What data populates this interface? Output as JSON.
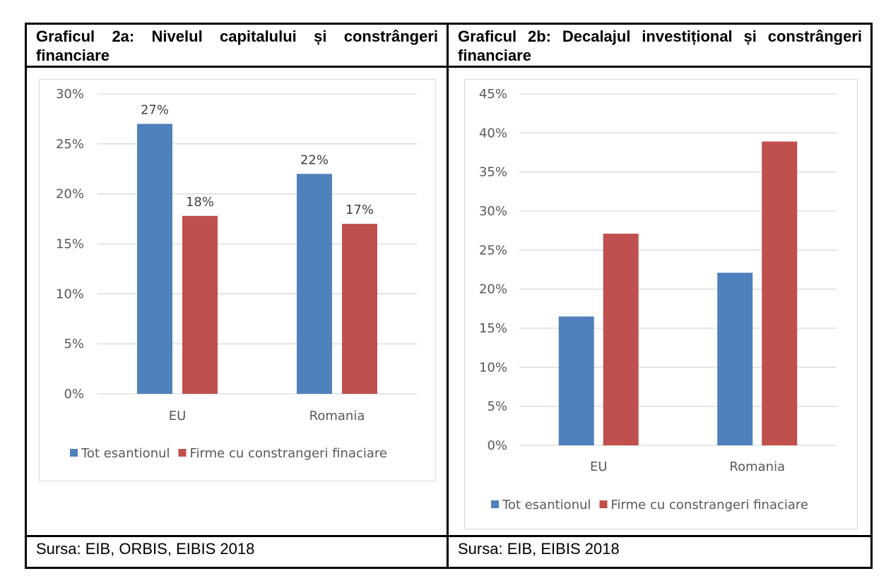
{
  "panels": [
    {
      "title": "Graficul 2a: Nivelul capitalului și constrângeri financiare",
      "source": "Sursa:  EIB, ORBIS, EIBIS 2018"
    },
    {
      "title": "Graficul 2b: Decalajul investițional și constrângeri financiare",
      "source": "Sursa:  EIB, EIBIS 2018"
    }
  ],
  "colors": {
    "series1": "#4f81bd",
    "series2": "#c0504d",
    "grid": "#d9d9d9"
  },
  "chart_data": [
    {
      "type": "bar",
      "categories": [
        "EU",
        "Romania"
      ],
      "series": [
        {
          "name": "Tot esantionul",
          "values": [
            0.27,
            0.22
          ]
        },
        {
          "name": "Firme cu constrangeri finaciare",
          "values": [
            0.178,
            0.17
          ]
        }
      ],
      "data_labels": [
        [
          "27%",
          "22%"
        ],
        [
          "18%",
          "17%"
        ]
      ],
      "yticks": [
        "0%",
        "5%",
        "10%",
        "15%",
        "20%",
        "25%",
        "30%"
      ],
      "ylim": [
        0,
        0.3
      ],
      "legend": "bottom",
      "grid": true
    },
    {
      "type": "bar",
      "categories": [
        "EU",
        "Romania"
      ],
      "series": [
        {
          "name": "Tot esantionul",
          "values": [
            0.165,
            0.221
          ]
        },
        {
          "name": "Firme cu constrangeri finaciare",
          "values": [
            0.271,
            0.389
          ]
        }
      ],
      "data_labels": null,
      "yticks": [
        "0%",
        "5%",
        "10%",
        "15%",
        "20%",
        "25%",
        "30%",
        "35%",
        "40%",
        "45%"
      ],
      "ylim": [
        0,
        0.45
      ],
      "legend": "bottom",
      "grid": true
    }
  ]
}
